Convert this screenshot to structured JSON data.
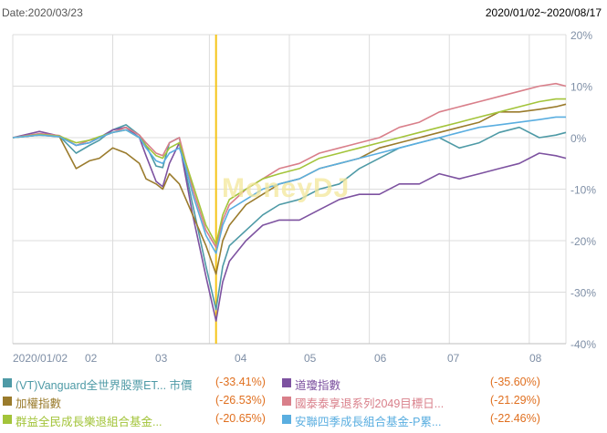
{
  "header": {
    "date_label": "Date:2020/03/23",
    "range_label": "2020/01/02~2020/08/17"
  },
  "watermark": "MoneyDJ",
  "colors": {
    "grid": "#dcdcdc",
    "axis_label": "#7f8fa6",
    "marker": "#f5c518",
    "value_text": "#e07020",
    "name_text": "#7a5a8a"
  },
  "chart_data": {
    "type": "line",
    "title": "",
    "x_ticks": [
      "2020/01/02",
      "02",
      "03",
      "04",
      "05",
      "06",
      "07",
      "08"
    ],
    "y_ticks": [
      "20%",
      "10%",
      "0%",
      "-10%",
      "-20%",
      "-30%",
      "-40%"
    ],
    "ylim": [
      -40,
      20
    ],
    "grid": true,
    "legend_position": "bottom",
    "marker_date": "2020/03/23",
    "series": [
      {
        "name": "(VT)Vanguard全世界股票ET... 市價",
        "value": "(-33.41%)",
        "color": "#4e9aa6",
        "points": [
          [
            0,
            0
          ],
          [
            8,
            0.5
          ],
          [
            14,
            0.3
          ],
          [
            19,
            -3
          ],
          [
            23,
            -1.5
          ],
          [
            26,
            -0.5
          ],
          [
            30,
            1.5
          ],
          [
            34,
            2.5
          ],
          [
            38,
            0.5
          ],
          [
            40,
            -1.5
          ],
          [
            43,
            -5.5
          ],
          [
            45,
            -5.8
          ],
          [
            47,
            -1
          ],
          [
            50,
            0
          ],
          [
            52,
            -7
          ],
          [
            54,
            -13
          ],
          [
            56,
            -19
          ],
          [
            58,
            -25
          ],
          [
            61,
            -33.4
          ],
          [
            63,
            -25
          ],
          [
            65,
            -21
          ],
          [
            70,
            -18
          ],
          [
            75,
            -15
          ],
          [
            80,
            -13
          ],
          [
            86,
            -12
          ],
          [
            92,
            -10
          ],
          [
            98,
            -9
          ],
          [
            104,
            -6
          ],
          [
            110,
            -4
          ],
          [
            116,
            -2
          ],
          [
            122,
            -1
          ],
          [
            128,
            0
          ],
          [
            134,
            -2
          ],
          [
            140,
            -1
          ],
          [
            146,
            1
          ],
          [
            152,
            2
          ],
          [
            158,
            0
          ],
          [
            163,
            0.5
          ],
          [
            166,
            1
          ]
        ]
      },
      {
        "name": "道瓊指數",
        "value": "(-35.60%)",
        "color": "#7d52a0",
        "points": [
          [
            0,
            0
          ],
          [
            8,
            1.2
          ],
          [
            14,
            0.3
          ],
          [
            19,
            -1.5
          ],
          [
            23,
            -1
          ],
          [
            26,
            0
          ],
          [
            30,
            1.5
          ],
          [
            34,
            2
          ],
          [
            38,
            0
          ],
          [
            40,
            -3.5
          ],
          [
            43,
            -8.5
          ],
          [
            45,
            -9.5
          ],
          [
            47,
            -5
          ],
          [
            50,
            -1
          ],
          [
            52,
            -8
          ],
          [
            54,
            -15
          ],
          [
            56,
            -21
          ],
          [
            58,
            -27
          ],
          [
            61,
            -35.6
          ],
          [
            63,
            -28
          ],
          [
            65,
            -24
          ],
          [
            70,
            -20
          ],
          [
            75,
            -17
          ],
          [
            80,
            -16
          ],
          [
            86,
            -16
          ],
          [
            92,
            -14
          ],
          [
            98,
            -12
          ],
          [
            104,
            -11
          ],
          [
            110,
            -11
          ],
          [
            116,
            -9
          ],
          [
            122,
            -9
          ],
          [
            128,
            -7
          ],
          [
            134,
            -8
          ],
          [
            140,
            -7
          ],
          [
            146,
            -6
          ],
          [
            152,
            -5
          ],
          [
            158,
            -3
          ],
          [
            163,
            -3.5
          ],
          [
            166,
            -4
          ]
        ]
      },
      {
        "name": "加權指數",
        "value": "(-26.53%)",
        "color": "#9a7b2c",
        "points": [
          [
            0,
            0
          ],
          [
            8,
            0.5
          ],
          [
            14,
            0.2
          ],
          [
            19,
            -6
          ],
          [
            23,
            -4.5
          ],
          [
            26,
            -4
          ],
          [
            30,
            -2
          ],
          [
            34,
            -3
          ],
          [
            38,
            -5
          ],
          [
            40,
            -8
          ],
          [
            43,
            -9
          ],
          [
            45,
            -10
          ],
          [
            47,
            -7
          ],
          [
            50,
            -9
          ],
          [
            52,
            -12
          ],
          [
            54,
            -15
          ],
          [
            56,
            -18
          ],
          [
            58,
            -21
          ],
          [
            61,
            -26.5
          ],
          [
            63,
            -20
          ],
          [
            65,
            -17
          ],
          [
            70,
            -13
          ],
          [
            75,
            -11
          ],
          [
            80,
            -9
          ],
          [
            86,
            -8
          ],
          [
            92,
            -6
          ],
          [
            98,
            -5
          ],
          [
            104,
            -4
          ],
          [
            110,
            -2
          ],
          [
            116,
            -1
          ],
          [
            122,
            0
          ],
          [
            128,
            1
          ],
          [
            134,
            2
          ],
          [
            140,
            3
          ],
          [
            146,
            5
          ],
          [
            152,
            5
          ],
          [
            158,
            5.5
          ],
          [
            163,
            6
          ],
          [
            166,
            6.5
          ]
        ]
      },
      {
        "name": "國泰泰享退系列2049目標日...",
        "value": "(-21.29%)",
        "color": "#d97f8a",
        "points": [
          [
            0,
            0
          ],
          [
            8,
            0.8
          ],
          [
            14,
            0.4
          ],
          [
            19,
            -1.5
          ],
          [
            23,
            -0.5
          ],
          [
            26,
            0
          ],
          [
            30,
            1
          ],
          [
            34,
            2
          ],
          [
            38,
            0.5
          ],
          [
            40,
            -1
          ],
          [
            43,
            -3
          ],
          [
            45,
            -3.5
          ],
          [
            47,
            -1
          ],
          [
            50,
            0
          ],
          [
            52,
            -5
          ],
          [
            54,
            -10
          ],
          [
            56,
            -14
          ],
          [
            58,
            -18
          ],
          [
            61,
            -21.3
          ],
          [
            63,
            -16
          ],
          [
            65,
            -13
          ],
          [
            70,
            -10
          ],
          [
            75,
            -8
          ],
          [
            80,
            -6
          ],
          [
            86,
            -5
          ],
          [
            92,
            -3
          ],
          [
            98,
            -2
          ],
          [
            104,
            -1
          ],
          [
            110,
            0
          ],
          [
            116,
            2
          ],
          [
            122,
            3
          ],
          [
            128,
            5
          ],
          [
            134,
            6
          ],
          [
            140,
            7
          ],
          [
            146,
            8
          ],
          [
            152,
            9
          ],
          [
            158,
            10
          ],
          [
            163,
            10.5
          ],
          [
            166,
            10
          ]
        ]
      },
      {
        "name": "群益全民成長樂退組合基金...",
        "value": "(-20.65%)",
        "color": "#a3c43a",
        "points": [
          [
            0,
            0
          ],
          [
            8,
            0.6
          ],
          [
            14,
            0.3
          ],
          [
            19,
            -1
          ],
          [
            23,
            -0.5
          ],
          [
            26,
            0.2
          ],
          [
            30,
            1
          ],
          [
            34,
            1.5
          ],
          [
            38,
            0
          ],
          [
            40,
            -1.5
          ],
          [
            43,
            -3.5
          ],
          [
            45,
            -4
          ],
          [
            47,
            -2
          ],
          [
            50,
            -1
          ],
          [
            52,
            -5
          ],
          [
            54,
            -9
          ],
          [
            56,
            -13
          ],
          [
            58,
            -17
          ],
          [
            61,
            -20.65
          ],
          [
            63,
            -15
          ],
          [
            65,
            -12
          ],
          [
            70,
            -10
          ],
          [
            75,
            -8
          ],
          [
            80,
            -7
          ],
          [
            86,
            -6
          ],
          [
            92,
            -4
          ],
          [
            98,
            -3
          ],
          [
            104,
            -2
          ],
          [
            110,
            -1
          ],
          [
            116,
            0
          ],
          [
            122,
            1
          ],
          [
            128,
            2
          ],
          [
            134,
            3
          ],
          [
            140,
            4
          ],
          [
            146,
            5
          ],
          [
            152,
            6
          ],
          [
            158,
            7
          ],
          [
            163,
            7.5
          ],
          [
            166,
            7.5
          ]
        ]
      },
      {
        "name": "安聯四季成長組合基金-P累...",
        "value": "(-22.46%)",
        "color": "#5aaee0",
        "points": [
          [
            0,
            0
          ],
          [
            8,
            0.5
          ],
          [
            14,
            0.2
          ],
          [
            19,
            -1.5
          ],
          [
            23,
            -1
          ],
          [
            26,
            0
          ],
          [
            30,
            1
          ],
          [
            34,
            1.5
          ],
          [
            38,
            0
          ],
          [
            40,
            -2
          ],
          [
            43,
            -4.5
          ],
          [
            45,
            -5
          ],
          [
            47,
            -3
          ],
          [
            50,
            -2
          ],
          [
            52,
            -6
          ],
          [
            54,
            -11
          ],
          [
            56,
            -15
          ],
          [
            58,
            -19
          ],
          [
            61,
            -22.46
          ],
          [
            63,
            -17
          ],
          [
            65,
            -14
          ],
          [
            70,
            -12
          ],
          [
            75,
            -10
          ],
          [
            80,
            -9
          ],
          [
            86,
            -8
          ],
          [
            92,
            -6
          ],
          [
            98,
            -5
          ],
          [
            104,
            -4
          ],
          [
            110,
            -3
          ],
          [
            116,
            -2
          ],
          [
            122,
            -1
          ],
          [
            128,
            0
          ],
          [
            134,
            1
          ],
          [
            140,
            2
          ],
          [
            146,
            2.5
          ],
          [
            152,
            3
          ],
          [
            158,
            3.5
          ],
          [
            163,
            4
          ],
          [
            166,
            4
          ]
        ]
      }
    ]
  }
}
